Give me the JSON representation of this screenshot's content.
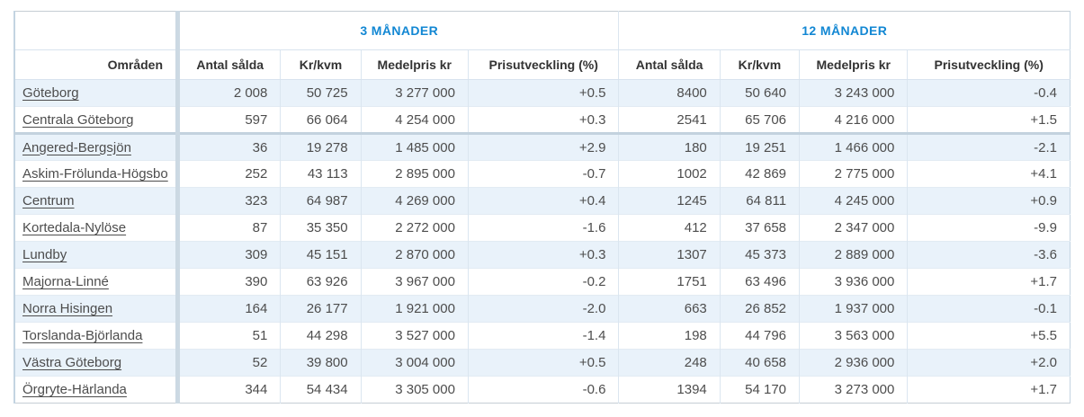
{
  "colors": {
    "accent_blue": "#1287d3",
    "row_stripe": "#e9f2fa",
    "cell_border": "#dbe6f0",
    "thick_divider": "#c3d2de",
    "header_text": "#333333",
    "body_text": "#4d4d4d"
  },
  "table": {
    "group_headers": {
      "three_months": "3 MÅNADER",
      "twelve_months": "12 MÅNADER"
    },
    "columns": {
      "areas": "Områden",
      "antal": "Antal sålda",
      "krkvm": "Kr/kvm",
      "medelpris": "Medelpris kr",
      "prisutveckling": "Prisutveckling (%)"
    },
    "rows": [
      {
        "name": "Göteborg",
        "antal_3": "2 008",
        "krkvm_3": "50 725",
        "medelpris_3": "3 277 000",
        "prisutv_3": "+0.5",
        "antal_12": "8400",
        "krkvm_12": "50 640",
        "medelpris_12": "3 243 000",
        "prisutv_12": "-0.4"
      },
      {
        "name": "Centrala Göteborg",
        "antal_3": "597",
        "krkvm_3": "66 064",
        "medelpris_3": "4 254 000",
        "prisutv_3": "+0.3",
        "antal_12": "2541",
        "krkvm_12": "65 706",
        "medelpris_12": "4 216 000",
        "prisutv_12": "+1.5"
      },
      {
        "name": "Angered-Bergsjön",
        "antal_3": "36",
        "krkvm_3": "19 278",
        "medelpris_3": "1 485 000",
        "prisutv_3": "+2.9",
        "antal_12": "180",
        "krkvm_12": "19 251",
        "medelpris_12": "1 466 000",
        "prisutv_12": "-2.1"
      },
      {
        "name": "Askim-Frölunda-Högsbo",
        "antal_3": "252",
        "krkvm_3": "43 113",
        "medelpris_3": "2 895 000",
        "prisutv_3": "-0.7",
        "antal_12": "1002",
        "krkvm_12": "42 869",
        "medelpris_12": "2 775 000",
        "prisutv_12": "+4.1"
      },
      {
        "name": "Centrum",
        "antal_3": "323",
        "krkvm_3": "64 987",
        "medelpris_3": "4 269 000",
        "prisutv_3": "+0.4",
        "antal_12": "1245",
        "krkvm_12": "64 811",
        "medelpris_12": "4 245 000",
        "prisutv_12": "+0.9"
      },
      {
        "name": "Kortedala-Nylöse",
        "antal_3": "87",
        "krkvm_3": "35 350",
        "medelpris_3": "2 272 000",
        "prisutv_3": "-1.6",
        "antal_12": "412",
        "krkvm_12": "37 658",
        "medelpris_12": "2 347 000",
        "prisutv_12": "-9.9"
      },
      {
        "name": "Lundby",
        "antal_3": "309",
        "krkvm_3": "45 151",
        "medelpris_3": "2 870 000",
        "prisutv_3": "+0.3",
        "antal_12": "1307",
        "krkvm_12": "45 373",
        "medelpris_12": "2 889 000",
        "prisutv_12": "-3.6"
      },
      {
        "name": "Majorna-Linné",
        "antal_3": "390",
        "krkvm_3": "63 926",
        "medelpris_3": "3 967 000",
        "prisutv_3": "-0.2",
        "antal_12": "1751",
        "krkvm_12": "63 496",
        "medelpris_12": "3 936 000",
        "prisutv_12": "+1.7"
      },
      {
        "name": "Norra Hisingen",
        "antal_3": "164",
        "krkvm_3": "26 177",
        "medelpris_3": "1 921 000",
        "prisutv_3": "-2.0",
        "antal_12": "663",
        "krkvm_12": "26 852",
        "medelpris_12": "1 937 000",
        "prisutv_12": "-0.1"
      },
      {
        "name": "Torslanda-Björlanda",
        "antal_3": "51",
        "krkvm_3": "44 298",
        "medelpris_3": "3 527 000",
        "prisutv_3": "-1.4",
        "antal_12": "198",
        "krkvm_12": "44 796",
        "medelpris_12": "3 563 000",
        "prisutv_12": "+5.5"
      },
      {
        "name": "Västra Göteborg",
        "antal_3": "52",
        "krkvm_3": "39 800",
        "medelpris_3": "3 004 000",
        "prisutv_3": "+0.5",
        "antal_12": "248",
        "krkvm_12": "40 658",
        "medelpris_12": "2 936 000",
        "prisutv_12": "+2.0"
      },
      {
        "name": "Örgryte-Härlanda",
        "antal_3": "344",
        "krkvm_3": "54 434",
        "medelpris_3": "3 305 000",
        "prisutv_3": "-0.6",
        "antal_12": "1394",
        "krkvm_12": "54 170",
        "medelpris_12": "3 273 000",
        "prisutv_12": "+1.7"
      }
    ]
  }
}
